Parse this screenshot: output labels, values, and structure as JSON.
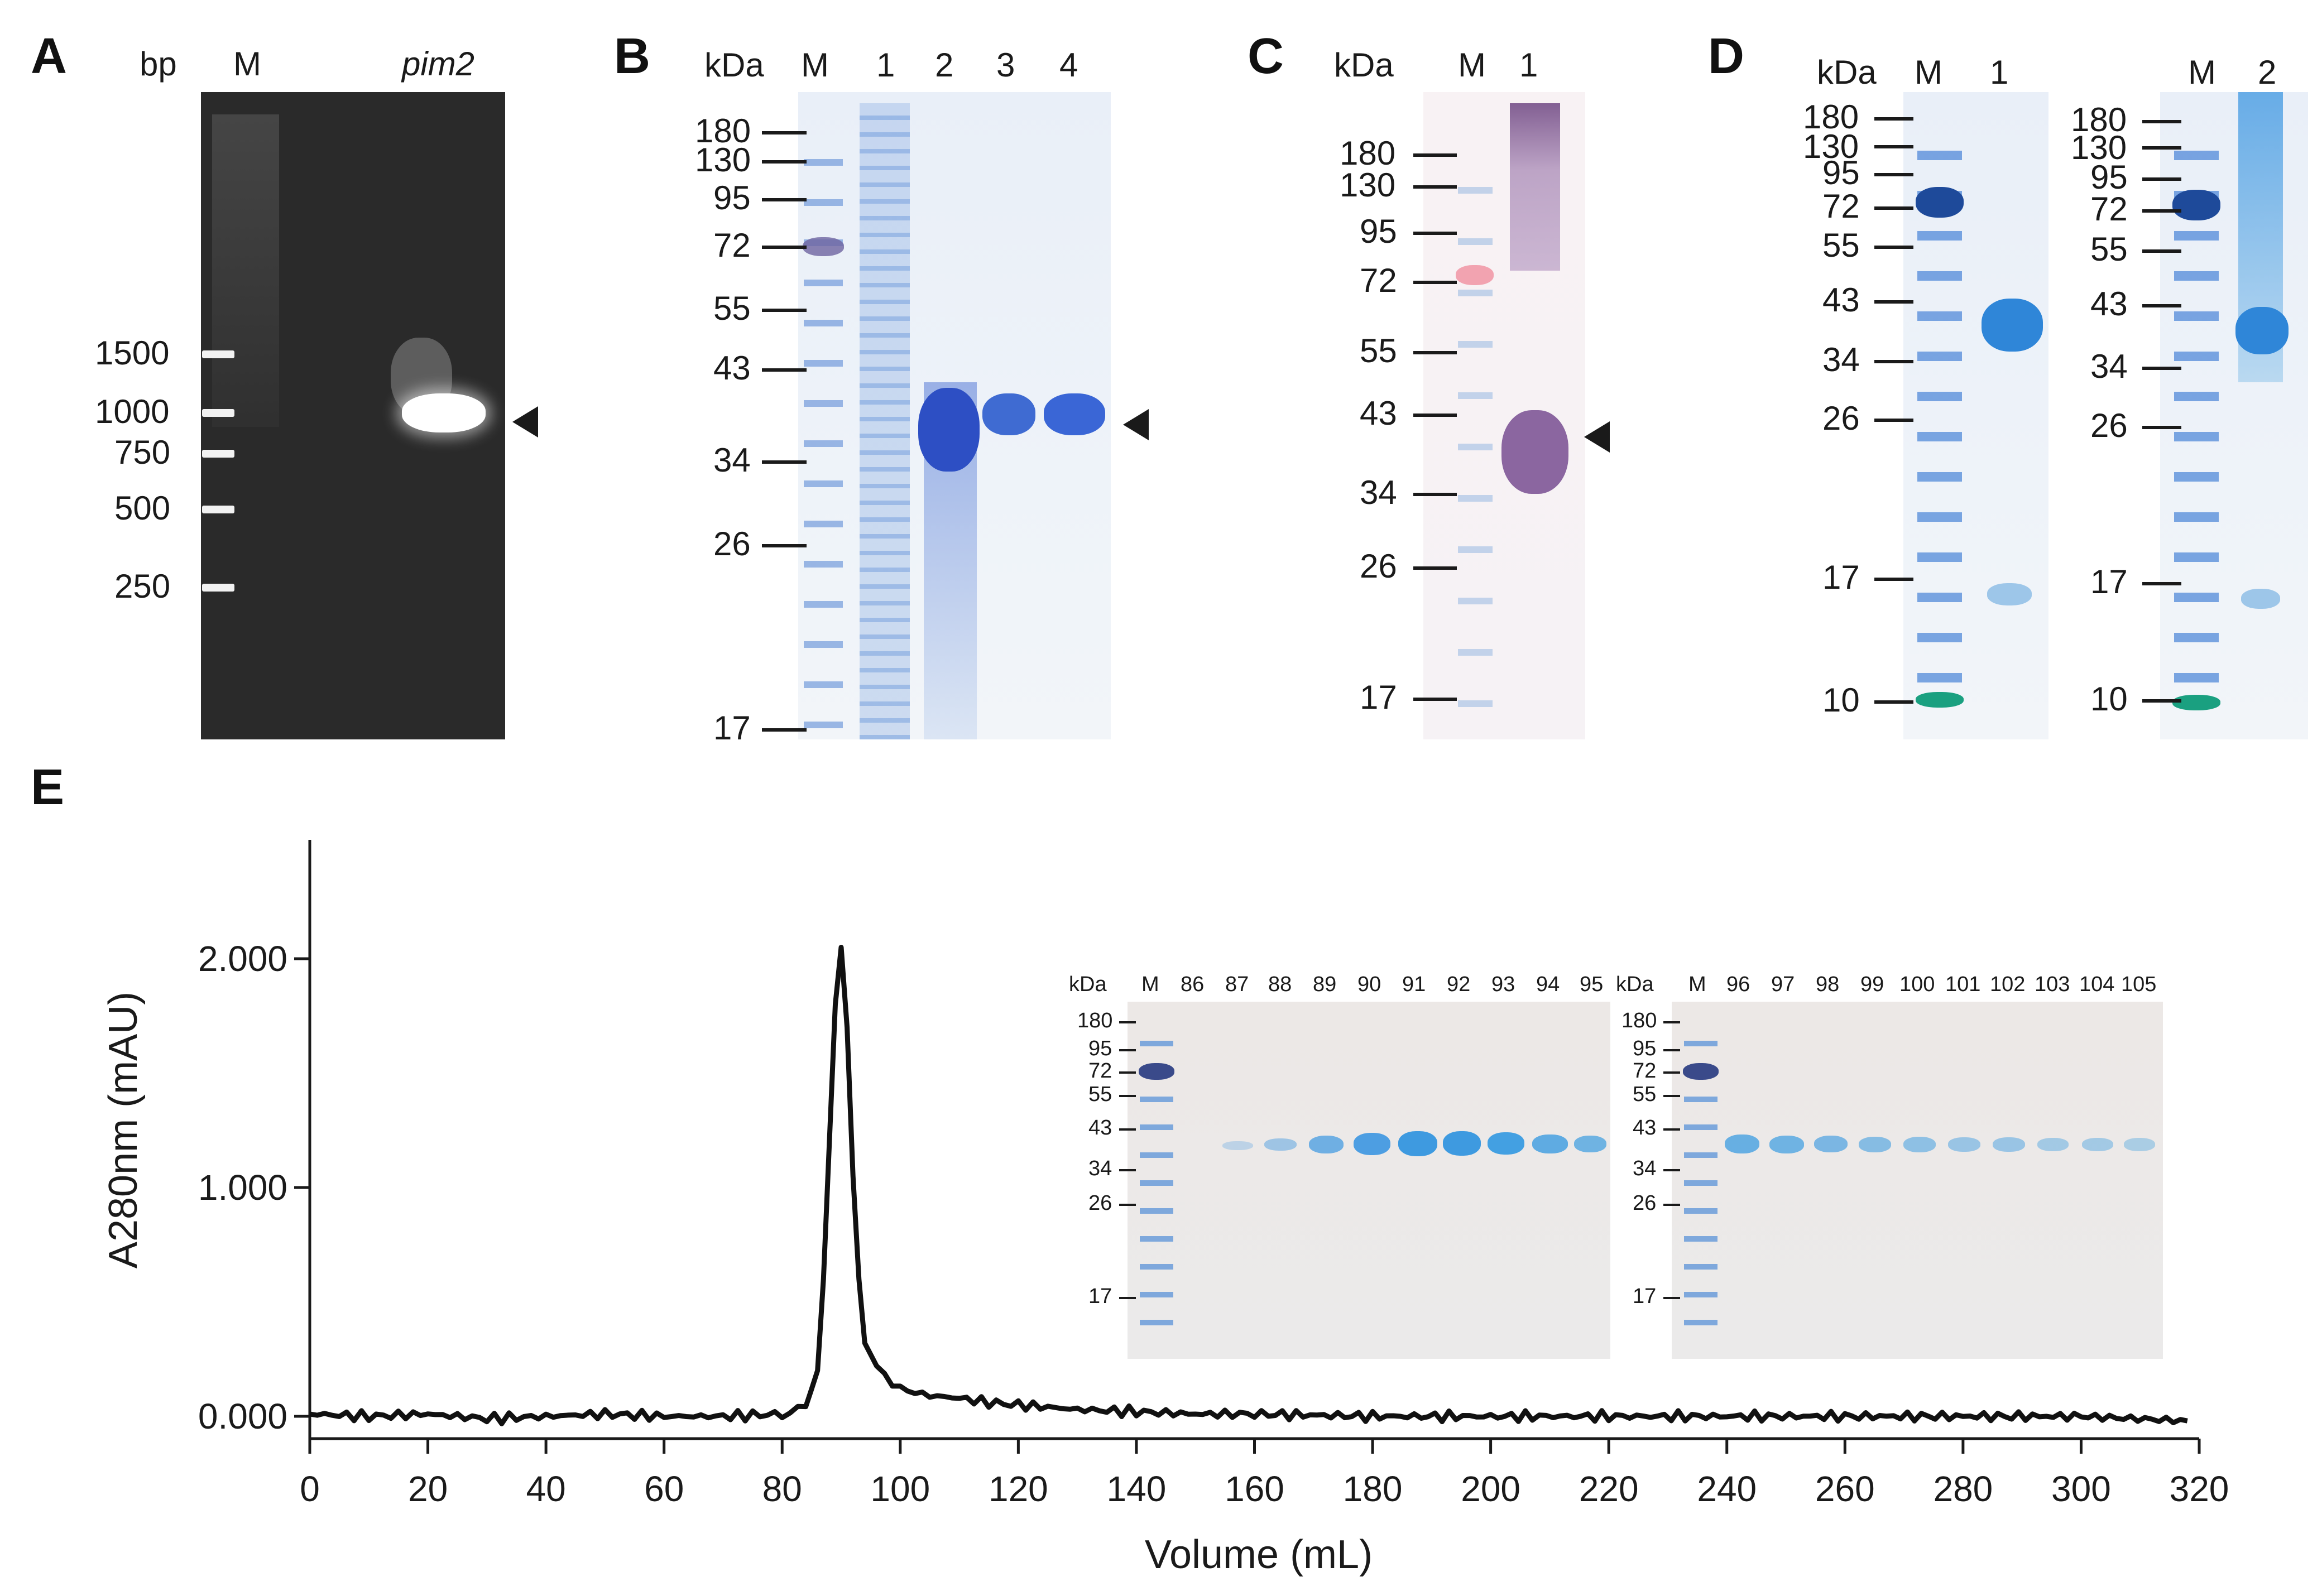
{
  "panels": {
    "A": {
      "letter": "A",
      "unit": "bp",
      "lane_labels": [
        "M",
        "pim2"
      ],
      "markers": [
        "1500",
        "1000",
        "750",
        "500",
        "250"
      ]
    },
    "B": {
      "letter": "B",
      "unit": "kDa",
      "lane_labels": [
        "M",
        "1",
        "2",
        "3",
        "4"
      ],
      "markers": [
        "180",
        "130",
        "95",
        "72",
        "55",
        "43",
        "34",
        "26",
        "17"
      ]
    },
    "C": {
      "letter": "C",
      "unit": "kDa",
      "lane_labels": [
        "M",
        "1"
      ],
      "markers": [
        "180",
        "130",
        "95",
        "72",
        "55",
        "43",
        "34",
        "26",
        "17"
      ]
    },
    "D": {
      "letter": "D",
      "gel1": {
        "unit": "kDa",
        "lane_labels": [
          "M",
          "1"
        ],
        "markers": [
          "180",
          "130",
          "95",
          "72",
          "55",
          "43",
          "34",
          "26",
          "17",
          "10"
        ]
      },
      "gel2": {
        "lane_labels": [
          "M",
          "2"
        ],
        "markers": [
          "180",
          "130",
          "95",
          "72",
          "55",
          "43",
          "34",
          "26",
          "17",
          "10"
        ]
      }
    },
    "E": {
      "letter": "E",
      "inset1": {
        "unit": "kDa",
        "lanes": [
          "M",
          "86",
          "87",
          "88",
          "89",
          "90",
          "91",
          "92",
          "93",
          "94",
          "95"
        ],
        "markers": [
          "180",
          "95",
          "72",
          "55",
          "43",
          "34",
          "26",
          "17"
        ]
      },
      "inset2": {
        "unit": "kDa",
        "lanes": [
          "M",
          "96",
          "97",
          "98",
          "99",
          "100",
          "101",
          "102",
          "103",
          "104",
          "105"
        ],
        "markers": [
          "180",
          "95",
          "72",
          "55",
          "43",
          "34",
          "26",
          "17"
        ]
      }
    }
  },
  "chart_data": {
    "type": "line",
    "title": "",
    "xlabel": "Volume (mL)",
    "ylabel": "A280nm (mAU)",
    "xlim": [
      0,
      320
    ],
    "ylim": [
      -0.05,
      2.5
    ],
    "xticks": [
      0,
      20,
      40,
      60,
      80,
      100,
      120,
      140,
      160,
      180,
      200,
      220,
      240,
      260,
      280,
      300,
      320
    ],
    "xtick_labels": [
      "0",
      "20",
      "40",
      "60",
      "80",
      "100",
      "120",
      "140",
      "160",
      "180",
      "200",
      "220",
      "240",
      "260",
      "280",
      "300",
      "320"
    ],
    "yticks": [
      0,
      1,
      2
    ],
    "ytick_labels": [
      "0.000",
      "1.000",
      "2.000"
    ],
    "series": [
      {
        "name": "A280",
        "color": "#111111",
        "x": [
          0,
          10,
          20,
          30,
          40,
          50,
          60,
          70,
          80,
          84,
          86,
          87,
          88,
          89,
          90,
          91,
          92,
          93,
          94,
          96,
          100,
          105,
          110,
          115,
          120,
          130,
          140,
          150,
          160,
          180,
          200,
          220,
          240,
          260,
          280,
          300,
          318
        ],
        "y": [
          0.01,
          0.0,
          0.01,
          -0.01,
          0.0,
          0.01,
          0.0,
          0.0,
          0.01,
          0.04,
          0.2,
          0.6,
          1.2,
          1.8,
          2.05,
          1.7,
          1.05,
          0.6,
          0.32,
          0.22,
          0.12,
          0.09,
          0.08,
          0.06,
          0.05,
          0.03,
          0.02,
          0.01,
          0.01,
          0.0,
          0.0,
          0.0,
          0.0,
          0.0,
          0.0,
          0.0,
          -0.02
        ]
      }
    ]
  }
}
